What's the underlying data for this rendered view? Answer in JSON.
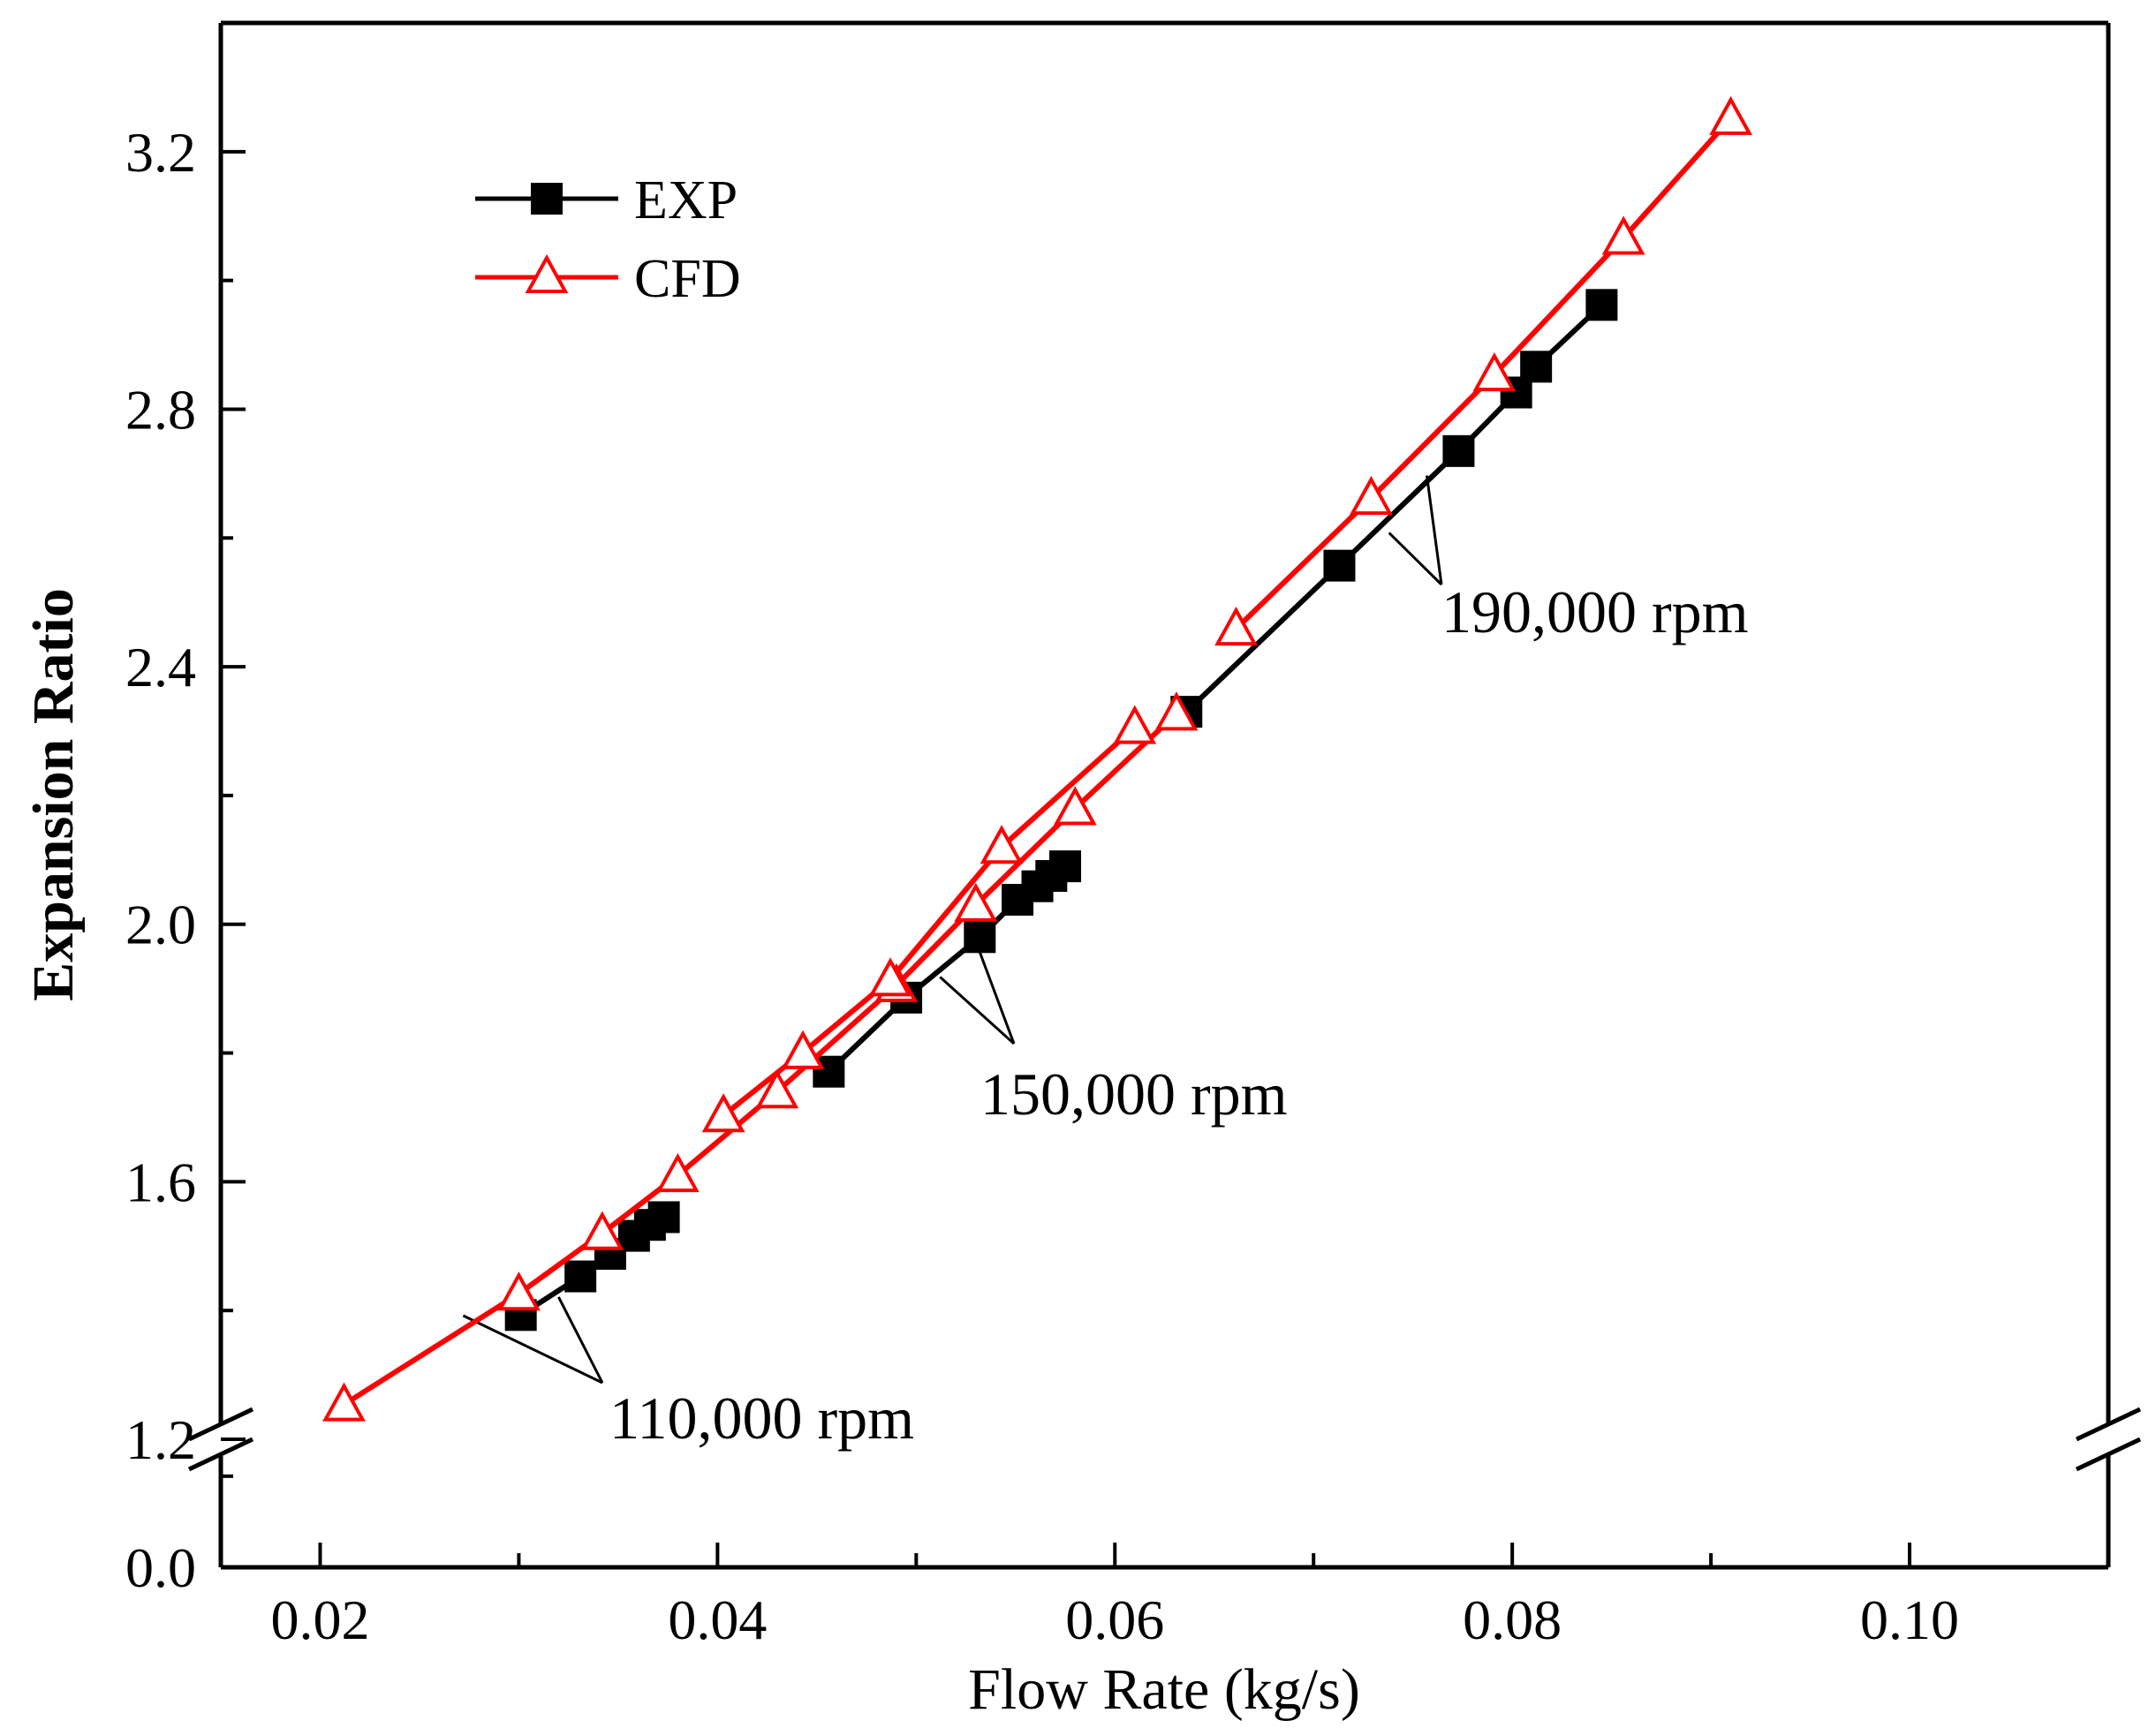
{
  "chart_data": {
    "type": "line",
    "xlabel": "Flow Rate (kg/s)",
    "ylabel": "Expansion Ratio",
    "xlim": [
      0.015,
      0.11
    ],
    "ylim_lower": [
      0.0,
      0.25
    ],
    "ylim_upper": [
      1.2,
      3.4
    ],
    "axis_break": "y-axis between 0.25 and 1.2",
    "x_ticks": [
      "0.02",
      "0.04",
      "0.06",
      "0.08",
      "0.10"
    ],
    "x_tick_values": [
      0.02,
      0.04,
      0.06,
      0.08,
      0.1
    ],
    "y_ticks": [
      "0.0",
      "1.2",
      "1.6",
      "2.0",
      "2.4",
      "2.8",
      "3.2"
    ],
    "y_tick_values": [
      0.0,
      1.2,
      1.6,
      2.0,
      2.4,
      2.8,
      3.2
    ],
    "legend_position": "top-left",
    "series": [
      {
        "name": "EXP",
        "color": "#000000",
        "marker": "square",
        "segments": [
          {
            "speed": "110,000 rpm",
            "points": [
              [
                0.0301,
                1.393
              ],
              [
                0.0331,
                1.453
              ],
              [
                0.0346,
                1.488
              ],
              [
                0.0358,
                1.516
              ],
              [
                0.0366,
                1.533
              ],
              [
                0.0373,
                1.545
              ]
            ]
          },
          {
            "speed": "150,000 rpm",
            "points": [
              [
                0.0456,
                1.771
              ],
              [
                0.0495,
                1.886
              ],
              [
                0.0532,
                1.98
              ],
              [
                0.0551,
                2.038
              ],
              [
                0.0561,
                2.059
              ],
              [
                0.0568,
                2.075
              ],
              [
                0.0575,
                2.09
              ]
            ]
          },
          {
            "speed": "190,000 rpm",
            "points": [
              [
                0.0636,
                2.33
              ],
              [
                0.0713,
                2.557
              ],
              [
                0.0773,
                2.735
              ],
              [
                0.0802,
                2.826
              ],
              [
                0.0812,
                2.866
              ],
              [
                0.0845,
                2.962
              ]
            ]
          }
        ]
      },
      {
        "name": "CFD",
        "color": "#ff0000",
        "marker": "open-triangle",
        "segments": [
          {
            "speed": "110,000 rpm",
            "points": [
              [
                0.0212,
                1.254
              ],
              [
                0.03,
                1.426
              ],
              [
                0.0342,
                1.52
              ],
              [
                0.038,
                1.61
              ],
              [
                0.043,
                1.74
              ],
              [
                0.049,
                1.905
              ],
              [
                0.053,
                2.03
              ],
              [
                0.058,
                2.18
              ],
              [
                0.0631,
                2.327
              ]
            ]
          },
          {
            "speed": "150,000 rpm",
            "points": [
              [
                0.0403,
                1.703
              ],
              [
                0.0443,
                1.801
              ],
              [
                0.0487,
                1.914
              ],
              [
                0.0543,
                2.12
              ],
              [
                0.061,
                2.306
              ]
            ]
          },
          {
            "speed": "190,000 rpm",
            "points": [
              [
                0.0661,
                2.459
              ],
              [
                0.0729,
                2.662
              ],
              [
                0.0791,
                2.854
              ],
              [
                0.0856,
                3.066
              ],
              [
                0.091,
                3.252
              ]
            ]
          }
        ]
      }
    ],
    "annotations": [
      {
        "text": "110,000 rpm",
        "points_to": [
          [
            0.0272,
            1.392
          ],
          [
            0.032,
            1.421
          ]
        ]
      },
      {
        "text": "150,000 rpm",
        "points_to": [
          [
            0.0512,
            1.918
          ],
          [
            0.0531,
            1.965
          ]
        ]
      },
      {
        "text": "190,000 rpm",
        "points_to": [
          [
            0.0738,
            2.608
          ],
          [
            0.0757,
            2.697
          ]
        ]
      }
    ]
  }
}
